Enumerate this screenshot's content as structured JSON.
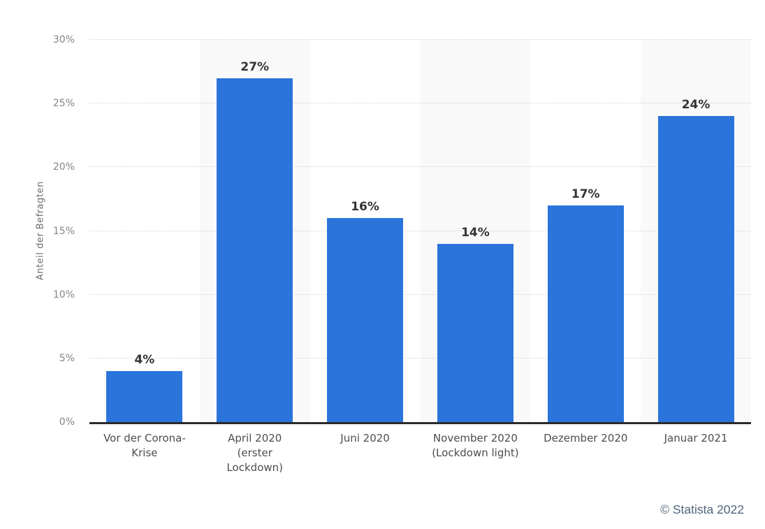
{
  "chart_data": {
    "type": "bar",
    "title": "",
    "categories": [
      "Vor der Corona-\nKrise",
      "April 2020\n(erster\nLockdown)",
      "Juni 2020",
      "November 2020\n(Lockdown light)",
      "Dezember 2020",
      "Januar 2021"
    ],
    "values": [
      4,
      27,
      16,
      14,
      17,
      24
    ],
    "value_labels": [
      "4%",
      "27%",
      "16%",
      "14%",
      "17%",
      "24%"
    ],
    "xlabel": "",
    "ylabel": "Anteil der Befragten",
    "ylim": [
      0,
      30
    ],
    "ytick_step": 5,
    "yticks": [
      "0%",
      "5%",
      "10%",
      "15%",
      "20%",
      "25%",
      "30%"
    ],
    "grid": "horizontal-dotted",
    "legend": "none",
    "alternating_plot_bands": true,
    "colors": {
      "bar": "#2b74db",
      "alt_band": "#f9f9f9",
      "grid": "#d5d5d5",
      "axis": "#2b2b2b",
      "value_label": "#333333",
      "axis_label": "#4d4d4d",
      "ytick_label": "#848484"
    }
  },
  "footer": {
    "credit": "© Statista 2022",
    "credit_color": "#51657a"
  }
}
